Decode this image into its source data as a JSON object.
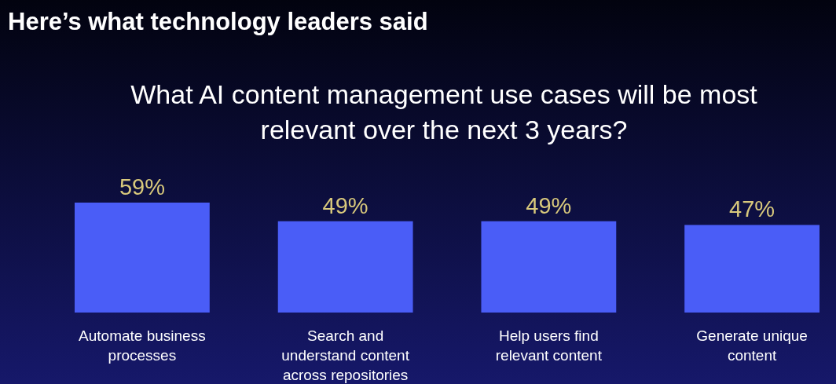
{
  "chart_data": {
    "type": "bar",
    "title": "Here’s what technology leaders said",
    "subtitle": "What AI content management use cases will be most relevant over the next 3 years?",
    "categories": [
      "Automate business processes",
      "Search and understand content across repositories",
      "Help users find relevant content",
      "Generate unique content"
    ],
    "values": [
      59,
      49,
      49,
      47
    ],
    "color": "#4a5df7",
    "value_labels": [
      "59%",
      "49%",
      "49%",
      "47%"
    ]
  }
}
